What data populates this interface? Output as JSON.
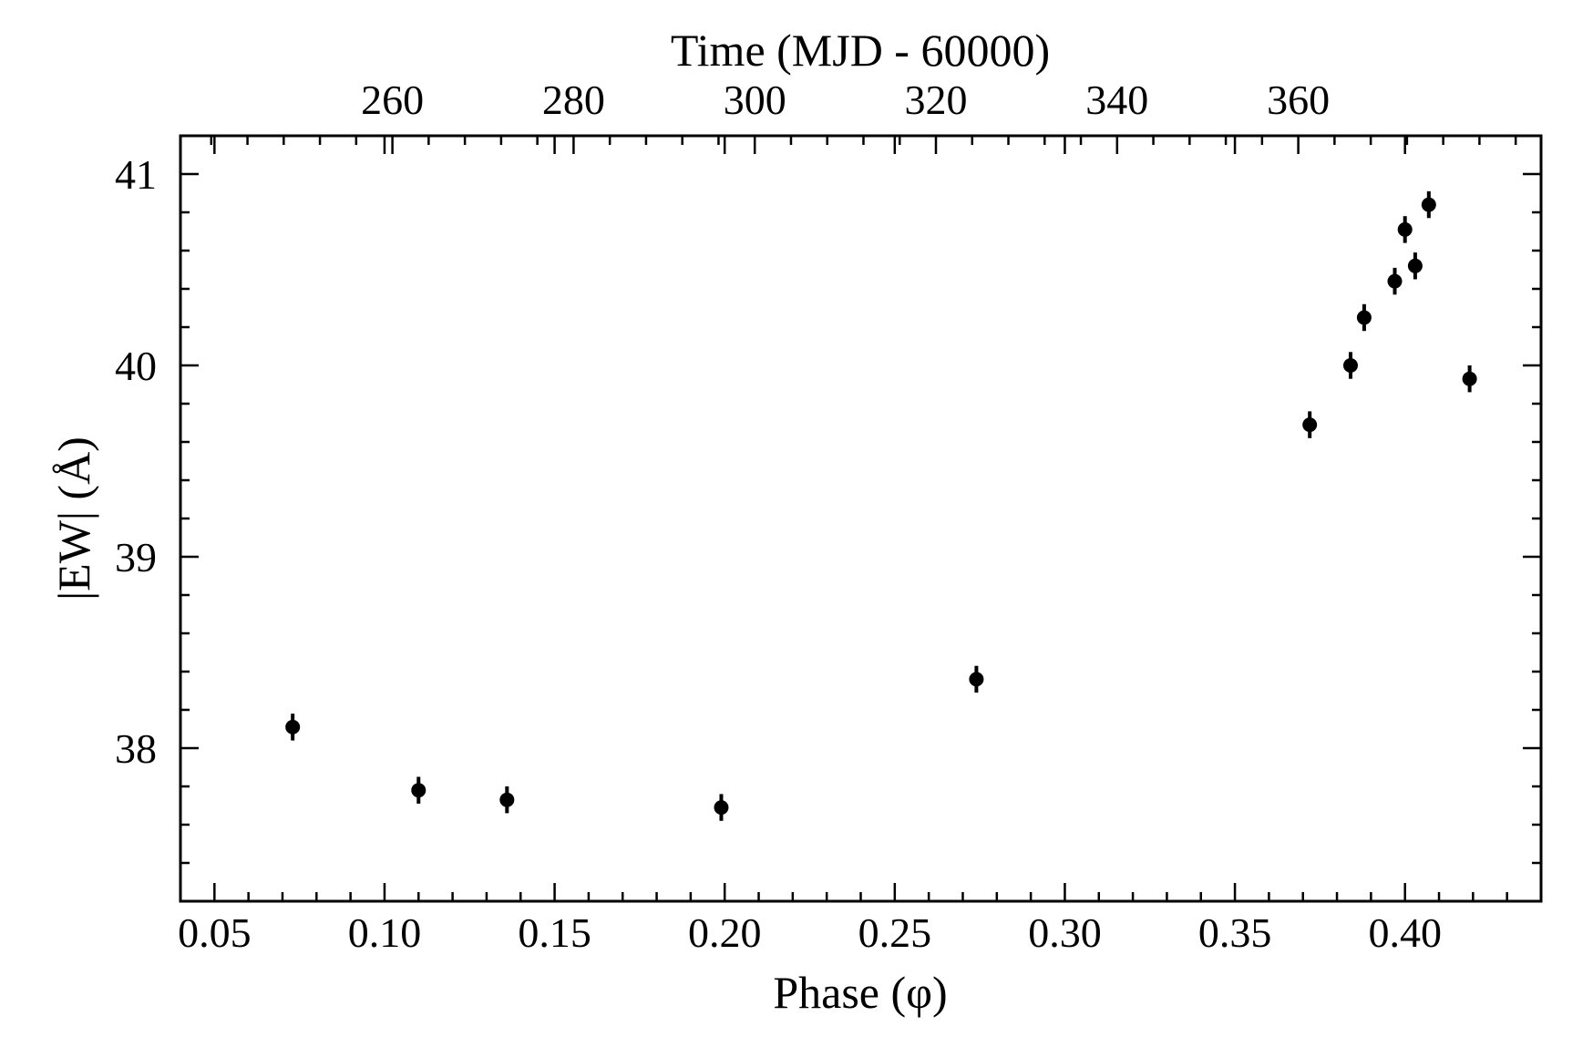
{
  "chart_data": {
    "type": "scatter",
    "xlabel": "Phase (φ)",
    "ylabel": "|EW| (Å)",
    "top_xlabel": "Time (MJD - 60000)",
    "xlim": [
      0.04,
      0.44
    ],
    "ylim": [
      37.2,
      41.2
    ],
    "top_xlim": [
      236.6,
      386.8
    ],
    "x_ticks": [
      0.05,
      0.1,
      0.15,
      0.2,
      0.25,
      0.3,
      0.35,
      0.4
    ],
    "x_tick_labels": [
      "0.05",
      "0.10",
      "0.15",
      "0.20",
      "0.25",
      "0.30",
      "0.35",
      "0.40"
    ],
    "y_ticks": [
      38,
      39,
      40,
      41
    ],
    "y_tick_labels": [
      "38",
      "39",
      "40",
      "41"
    ],
    "top_x_ticks": [
      260,
      280,
      300,
      320,
      340,
      360
    ],
    "top_x_tick_labels": [
      "260",
      "280",
      "300",
      "320",
      "340",
      "360"
    ],
    "grid": false,
    "series": [
      {
        "points": [
          {
            "x": 0.073,
            "y": 38.11,
            "err": 0.07
          },
          {
            "x": 0.11,
            "y": 37.78,
            "err": 0.07
          },
          {
            "x": 0.136,
            "y": 37.73,
            "err": 0.07
          },
          {
            "x": 0.199,
            "y": 37.69,
            "err": 0.07
          },
          {
            "x": 0.274,
            "y": 38.36,
            "err": 0.07
          },
          {
            "x": 0.372,
            "y": 39.69,
            "err": 0.07
          },
          {
            "x": 0.384,
            "y": 40.0,
            "err": 0.07
          },
          {
            "x": 0.388,
            "y": 40.25,
            "err": 0.07
          },
          {
            "x": 0.397,
            "y": 40.44,
            "err": 0.07
          },
          {
            "x": 0.4,
            "y": 40.71,
            "err": 0.07
          },
          {
            "x": 0.403,
            "y": 40.52,
            "err": 0.07
          },
          {
            "x": 0.407,
            "y": 40.84,
            "err": 0.07
          },
          {
            "x": 0.419,
            "y": 39.93,
            "err": 0.07
          }
        ],
        "color": "#000000"
      }
    ]
  }
}
